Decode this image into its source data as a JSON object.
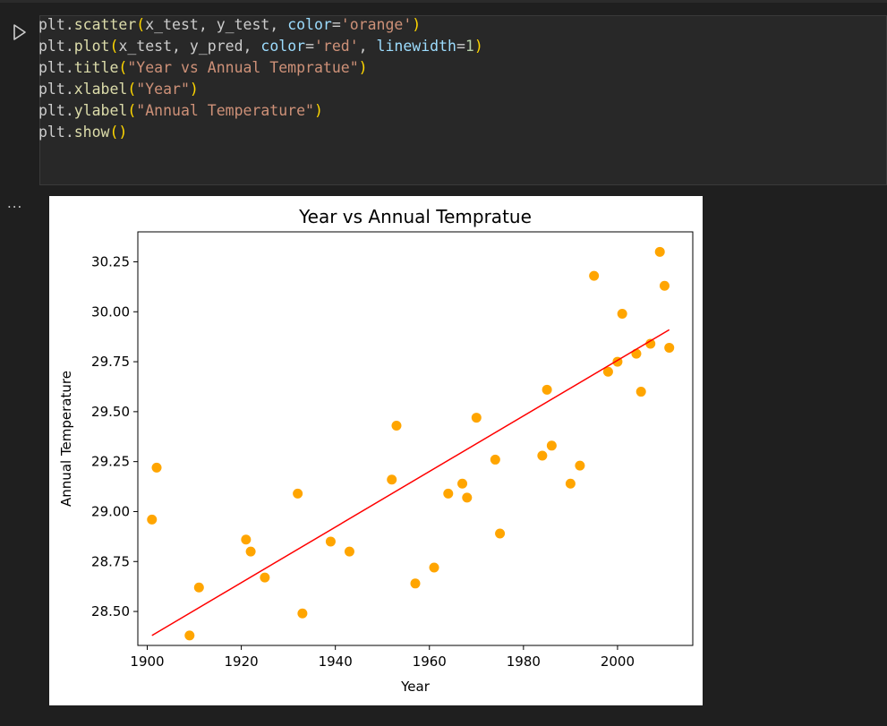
{
  "cell": {
    "run_icon": "play-triangle-icon",
    "output_menu": "...",
    "code": {
      "line1": {
        "obj": "plt",
        "fn": "scatter",
        "args": "x_test, y_test, ",
        "kw": "color",
        "val": "'orange'"
      },
      "line2": {
        "obj": "plt",
        "fn": "plot",
        "args": "x_test, y_pred, ",
        "kw": "color",
        "val": "'red'",
        "kw2": "linewidth",
        "val2": "1"
      },
      "line3": {
        "obj": "plt",
        "fn": "title",
        "val": "\"Year vs Annual Tempratue\""
      },
      "line4": {
        "obj": "plt",
        "fn": "xlabel",
        "val": "\"Year\""
      },
      "line5": {
        "obj": "plt",
        "fn": "ylabel",
        "val": "\"Annual Temperature\""
      },
      "line6": {
        "obj": "plt",
        "fn": "show"
      }
    }
  },
  "chart_data": {
    "type": "scatter",
    "title": "Year vs Annual Tempratue",
    "xlabel": "Year",
    "ylabel": "Annual Temperature",
    "xlim": [
      1898,
      2016
    ],
    "ylim": [
      28.33,
      30.4
    ],
    "xticks": [
      1900,
      1920,
      1940,
      1960,
      1980,
      2000
    ],
    "yticks": [
      28.5,
      28.75,
      29.0,
      29.25,
      29.5,
      29.75,
      30.0,
      30.25
    ],
    "ytick_labels": [
      "28.50",
      "28.75",
      "29.00",
      "29.25",
      "29.50",
      "29.75",
      "30.00",
      "30.25"
    ],
    "grid": false,
    "scatter": {
      "color": "#ffa500",
      "x": [
        1901,
        1902,
        1909,
        1911,
        1921,
        1922,
        1925,
        1932,
        1933,
        1939,
        1943,
        1952,
        1953,
        1957,
        1961,
        1964,
        1967,
        1968,
        1970,
        1974,
        1975,
        1984,
        1985,
        1986,
        1990,
        1992,
        1995,
        1998,
        2000,
        2001,
        2004,
        2005,
        2007,
        2009,
        2010,
        2011
      ],
      "y": [
        28.96,
        29.22,
        28.38,
        28.62,
        28.86,
        28.8,
        28.67,
        29.09,
        28.49,
        28.85,
        28.8,
        29.16,
        29.43,
        28.64,
        28.72,
        29.09,
        29.14,
        29.07,
        29.47,
        29.26,
        28.89,
        29.28,
        29.61,
        29.33,
        29.14,
        29.23,
        30.18,
        29.7,
        29.75,
        29.99,
        29.79,
        29.6,
        29.84,
        30.3,
        30.13,
        29.82
      ]
    },
    "line": {
      "color": "#ff0000",
      "x": [
        1901,
        2011
      ],
      "y": [
        28.38,
        29.91
      ]
    }
  }
}
